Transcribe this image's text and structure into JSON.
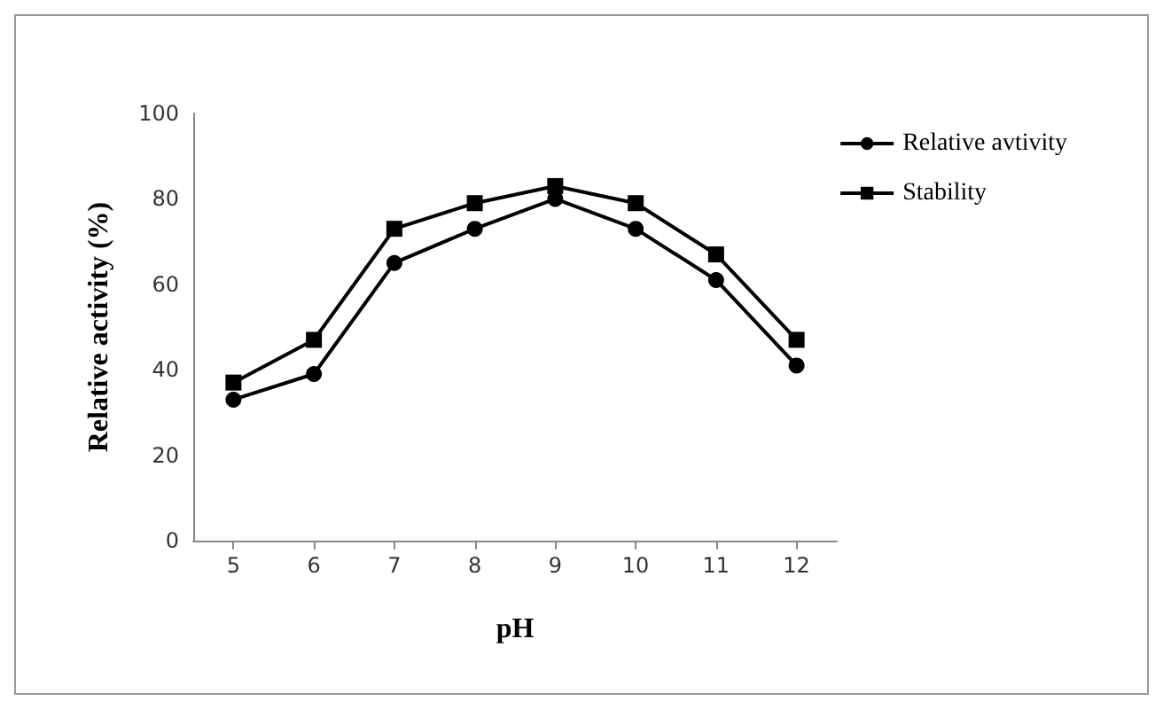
{
  "chart_data": {
    "type": "line",
    "xlabel": "pH",
    "ylabel": "Relative activity (%)",
    "categories": [
      "5",
      "6",
      "7",
      "8",
      "9",
      "10",
      "11",
      "12"
    ],
    "series": [
      {
        "name": "Relative avtivity",
        "color": "#000000",
        "marker": "circle",
        "values": [
          33,
          39,
          65,
          73,
          80,
          73,
          61,
          41
        ]
      },
      {
        "name": "Stability",
        "color": "#000000",
        "marker": "square",
        "values": [
          37,
          47,
          73,
          79,
          83,
          79,
          67,
          47
        ]
      }
    ],
    "ylim": [
      0,
      100
    ],
    "yticks": [
      0,
      20,
      40,
      60,
      80,
      100
    ],
    "grid": false,
    "legend": "top right",
    "line_style": "solid"
  }
}
